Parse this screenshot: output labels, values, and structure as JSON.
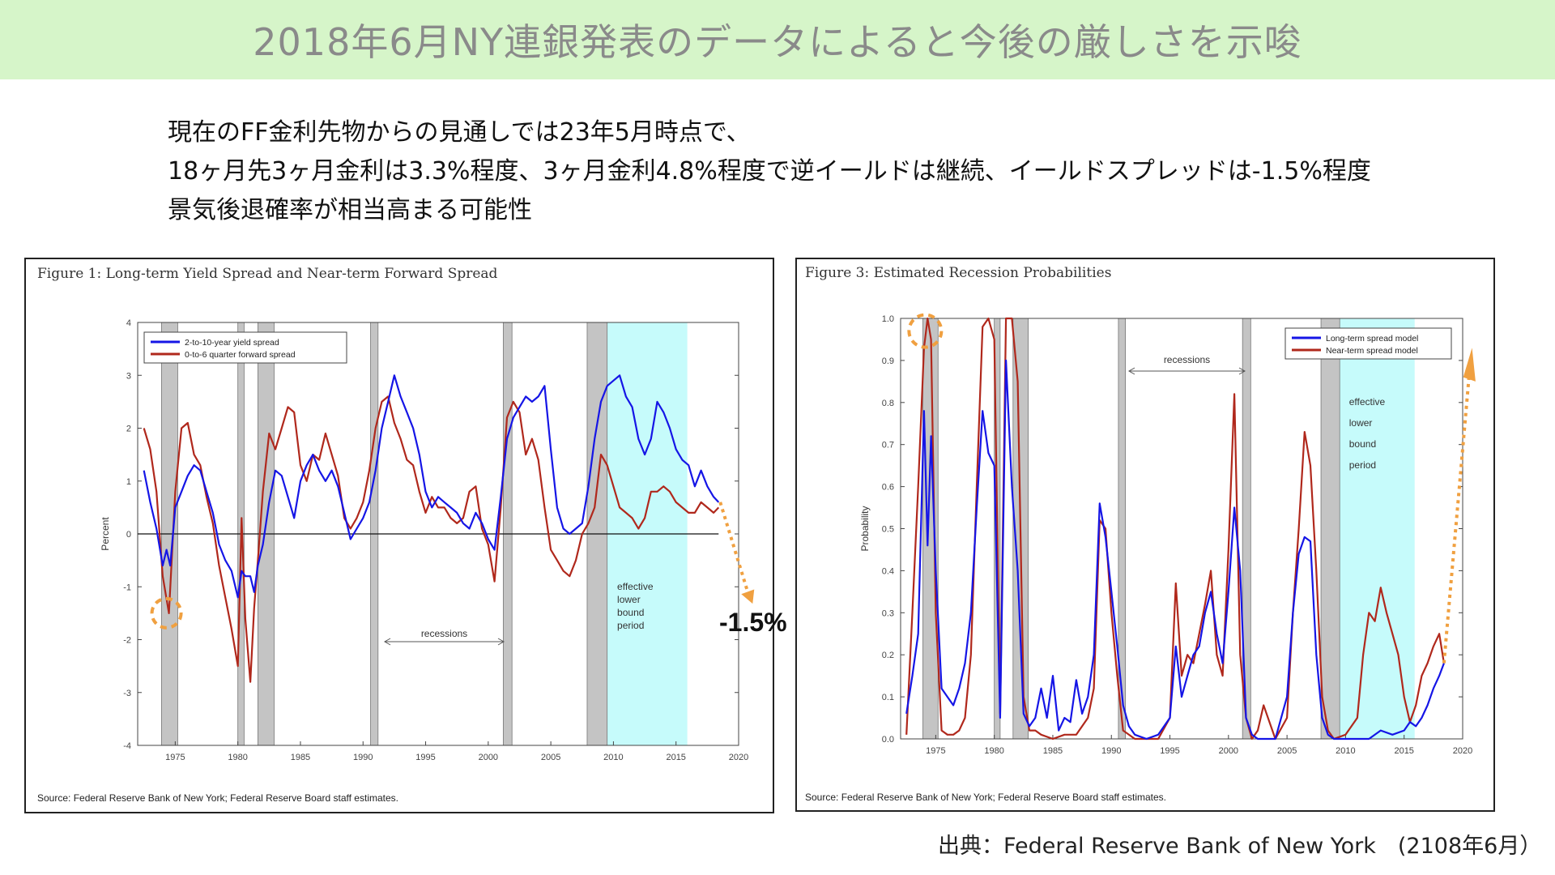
{
  "slide": {
    "title": "2018年6月NY連銀発表のデータによると今後の厳しさを示唆",
    "lines": [
      "現在のFF金利先物からの見通しでは23年5月時点で、",
      "18ヶ月先3ヶ月金利は3.3%程度、3ヶ月金利4.8%程度で逆イールドは継続、イールドスプレッドは-1.5%程度",
      "景気後退確率が相当高まる可能性"
    ],
    "annotation_value": "-1.5%",
    "credit": "出典：Federal Reserve Bank of New York　(2108年6月）"
  },
  "colors": {
    "blue": "#1515e6",
    "red": "#b0281c",
    "recession": "#c4c4c4",
    "elb": "#c6fbfb",
    "arrow": "#f0a040",
    "title_bg": "#d6f5c9"
  },
  "chart_data": [
    {
      "type": "line",
      "title": "Figure 1: Long-term Yield Spread and Near-term Forward Spread",
      "ylabel": "Percent",
      "xlim": [
        1972,
        2020
      ],
      "ylim": [
        -4,
        4
      ],
      "xticks": [
        "1975",
        "1980",
        "1985",
        "1990",
        "1995",
        "2000",
        "2005",
        "2010",
        "2015",
        "2020"
      ],
      "yticks": [
        "4",
        "3",
        "2",
        "1",
        "0",
        "-1",
        "-2",
        "-3",
        "-4"
      ],
      "legend": "top-left",
      "source": "Source: Federal Reserve Bank of New York; Federal Reserve Board staff estimates.",
      "recessions": [
        [
          1973.9,
          1975.2
        ],
        [
          1980.0,
          1980.5
        ],
        [
          1981.6,
          1982.9
        ],
        [
          1990.6,
          1991.2
        ],
        [
          2001.2,
          2001.9
        ],
        [
          2007.9,
          2009.5
        ]
      ],
      "elb_period": [
        2009.0,
        2015.9
      ],
      "elb_label": [
        "effective",
        "lower",
        "bound",
        "period"
      ],
      "recessions_label": "recessions",
      "series": [
        {
          "name": "2-to-10-year yield spread",
          "x": [
            1972.5,
            1973.0,
            1973.5,
            1974.0,
            1974.3,
            1974.6,
            1975.0,
            1975.5,
            1976.0,
            1976.5,
            1977.0,
            1977.5,
            1978.0,
            1978.5,
            1979.0,
            1979.5,
            1980.0,
            1980.3,
            1980.6,
            1981.0,
            1981.3,
            1981.6,
            1982.0,
            1982.5,
            1983.0,
            1983.5,
            1984.0,
            1984.5,
            1985.0,
            1985.5,
            1986.0,
            1986.5,
            1987.0,
            1987.5,
            1988.0,
            1988.5,
            1989.0,
            1989.5,
            1990.0,
            1990.5,
            1991.0,
            1991.5,
            1992.0,
            1992.5,
            1993.0,
            1993.5,
            1994.0,
            1994.5,
            1995.0,
            1995.5,
            1996.0,
            1996.5,
            1997.0,
            1997.5,
            1998.0,
            1998.5,
            1999.0,
            1999.5,
            2000.0,
            2000.5,
            2001.0,
            2001.5,
            2002.0,
            2002.5,
            2003.0,
            2003.5,
            2004.0,
            2004.5,
            2005.0,
            2005.5,
            2006.0,
            2006.5,
            2007.0,
            2007.5,
            2008.0,
            2008.5,
            2009.0,
            2009.5,
            2010.0,
            2010.5,
            2011.0,
            2011.5,
            2012.0,
            2012.5,
            2013.0,
            2013.5,
            2014.0,
            2014.5,
            2015.0,
            2015.5,
            2016.0,
            2016.5,
            2017.0,
            2017.5,
            2018.0,
            2018.4
          ],
          "y": [
            1.2,
            0.6,
            0.1,
            -0.6,
            -0.3,
            -0.6,
            0.5,
            0.8,
            1.1,
            1.3,
            1.2,
            0.8,
            0.4,
            -0.2,
            -0.5,
            -0.7,
            -1.2,
            -0.7,
            -0.8,
            -0.8,
            -1.1,
            -0.6,
            -0.2,
            0.6,
            1.2,
            1.1,
            0.7,
            0.3,
            1.0,
            1.3,
            1.5,
            1.2,
            1.0,
            1.2,
            0.9,
            0.4,
            -0.1,
            0.1,
            0.3,
            0.6,
            1.2,
            2.0,
            2.5,
            3.0,
            2.6,
            2.3,
            2.0,
            1.5,
            0.8,
            0.5,
            0.7,
            0.6,
            0.5,
            0.4,
            0.2,
            0.1,
            0.4,
            0.2,
            -0.1,
            -0.3,
            0.7,
            1.8,
            2.2,
            2.4,
            2.6,
            2.5,
            2.6,
            2.8,
            1.6,
            0.5,
            0.1,
            0.0,
            0.1,
            0.2,
            0.9,
            1.8,
            2.5,
            2.8,
            2.9,
            3.0,
            2.6,
            2.4,
            1.8,
            1.5,
            1.8,
            2.5,
            2.3,
            2.0,
            1.6,
            1.4,
            1.3,
            0.9,
            1.2,
            0.9,
            0.7,
            0.6
          ]
        },
        {
          "name": "0-to-6 quarter forward spread",
          "x": [
            1972.5,
            1973.0,
            1973.5,
            1974.0,
            1974.5,
            1975.0,
            1975.5,
            1976.0,
            1976.5,
            1977.0,
            1977.5,
            1978.0,
            1978.5,
            1979.0,
            1979.5,
            1980.0,
            1980.3,
            1980.6,
            1981.0,
            1981.3,
            1981.6,
            1982.0,
            1982.5,
            1983.0,
            1983.5,
            1984.0,
            1984.5,
            1985.0,
            1985.5,
            1986.0,
            1986.5,
            1987.0,
            1987.5,
            1988.0,
            1988.5,
            1989.0,
            1989.5,
            1990.0,
            1990.5,
            1991.0,
            1991.5,
            1992.0,
            1992.5,
            1993.0,
            1993.5,
            1994.0,
            1994.5,
            1995.0,
            1995.5,
            1996.0,
            1996.5,
            1997.0,
            1997.5,
            1998.0,
            1998.5,
            1999.0,
            1999.5,
            2000.0,
            2000.5,
            2001.0,
            2001.5,
            2002.0,
            2002.5,
            2003.0,
            2003.5,
            2004.0,
            2004.5,
            2005.0,
            2005.5,
            2006.0,
            2006.5,
            2007.0,
            2007.5,
            2008.0,
            2008.5,
            2009.0,
            2009.5,
            2010.0,
            2010.5,
            2011.0,
            2011.5,
            2012.0,
            2012.5,
            2013.0,
            2013.5,
            2014.0,
            2014.5,
            2015.0,
            2015.5,
            2016.0,
            2016.5,
            2017.0,
            2017.5,
            2018.0,
            2018.4
          ],
          "y": [
            2.0,
            1.6,
            0.8,
            -0.8,
            -1.5,
            0.8,
            2.0,
            2.1,
            1.5,
            1.3,
            0.7,
            0.2,
            -0.6,
            -1.2,
            -1.8,
            -2.5,
            0.3,
            -1.6,
            -2.8,
            -1.4,
            -0.5,
            0.8,
            1.9,
            1.6,
            2.0,
            2.4,
            2.3,
            1.3,
            1.0,
            1.5,
            1.4,
            1.9,
            1.5,
            1.1,
            0.3,
            0.1,
            0.3,
            0.6,
            1.2,
            2.0,
            2.5,
            2.6,
            2.1,
            1.8,
            1.4,
            1.3,
            0.8,
            0.4,
            0.7,
            0.5,
            0.5,
            0.3,
            0.2,
            0.3,
            0.8,
            0.9,
            0.1,
            -0.2,
            -0.9,
            0.5,
            2.2,
            2.5,
            2.3,
            1.5,
            1.8,
            1.4,
            0.5,
            -0.3,
            -0.5,
            -0.7,
            -0.8,
            -0.5,
            0.0,
            0.2,
            0.5,
            1.5,
            1.3,
            0.9,
            0.5,
            0.4,
            0.3,
            0.1,
            0.3,
            0.8,
            0.8,
            0.9,
            0.8,
            0.6,
            0.5,
            0.4,
            0.4,
            0.6,
            0.5,
            0.4,
            0.5
          ]
        }
      ]
    },
    {
      "type": "line",
      "title": "Figure 3: Estimated Recession Probabilities",
      "ylabel": "Probability",
      "xlim": [
        1972,
        2020
      ],
      "ylim": [
        0,
        1
      ],
      "xticks": [
        "1975",
        "1980",
        "1985",
        "1990",
        "1995",
        "2000",
        "2005",
        "2010",
        "2015",
        "2020"
      ],
      "yticks": [
        "1.0",
        "0.9",
        "0.8",
        "0.7",
        "0.6",
        "0.5",
        "0.4",
        "0.3",
        "0.2",
        "0.1",
        "0.0"
      ],
      "legend": "top-right",
      "source": "Source: Federal Reserve Bank of New York; Federal Reserve Board staff estimates.",
      "recessions": [
        [
          1973.9,
          1975.2
        ],
        [
          1980.0,
          1980.5
        ],
        [
          1981.6,
          1982.9
        ],
        [
          1990.6,
          1991.2
        ],
        [
          2001.2,
          2001.9
        ],
        [
          2007.9,
          2009.5
        ]
      ],
      "elb_period": [
        2009.0,
        2015.9
      ],
      "elb_label": [
        "effective",
        "lower",
        "bound",
        "period"
      ],
      "recessions_label": "recessions",
      "series": [
        {
          "name": "Long-term spread model",
          "x": [
            1972.5,
            1973.0,
            1973.5,
            1974.0,
            1974.3,
            1974.6,
            1975.0,
            1975.5,
            1976.0,
            1976.5,
            1977.0,
            1977.5,
            1978.0,
            1978.5,
            1979.0,
            1979.5,
            1980.0,
            1980.5,
            1981.0,
            1981.5,
            1982.0,
            1982.5,
            1983.0,
            1983.5,
            1984.0,
            1984.5,
            1985.0,
            1985.5,
            1986.0,
            1986.5,
            1987.0,
            1987.5,
            1988.0,
            1988.5,
            1989.0,
            1989.5,
            1990.0,
            1990.5,
            1991.0,
            1991.5,
            1992.0,
            1993.0,
            1994.0,
            1995.0,
            1995.5,
            1996.0,
            1996.5,
            1997.0,
            1997.5,
            1998.0,
            1998.5,
            1999.0,
            1999.5,
            2000.0,
            2000.5,
            2001.0,
            2001.5,
            2002.0,
            2002.5,
            2003.0,
            2004.0,
            2005.0,
            2005.5,
            2006.0,
            2006.5,
            2007.0,
            2007.5,
            2008.0,
            2008.5,
            2009.0,
            2010.0,
            2011.0,
            2012.0,
            2013.0,
            2014.0,
            2015.0,
            2015.5,
            2016.0,
            2016.5,
            2017.0,
            2017.5,
            2018.0,
            2018.4
          ],
          "y": [
            0.06,
            0.15,
            0.25,
            0.78,
            0.46,
            0.72,
            0.4,
            0.12,
            0.1,
            0.08,
            0.12,
            0.18,
            0.3,
            0.55,
            0.78,
            0.68,
            0.65,
            0.05,
            0.9,
            0.6,
            0.4,
            0.06,
            0.03,
            0.05,
            0.12,
            0.05,
            0.15,
            0.02,
            0.05,
            0.04,
            0.14,
            0.06,
            0.1,
            0.2,
            0.56,
            0.48,
            0.35,
            0.22,
            0.08,
            0.03,
            0.01,
            0.0,
            0.01,
            0.05,
            0.22,
            0.1,
            0.15,
            0.2,
            0.22,
            0.3,
            0.35,
            0.25,
            0.18,
            0.35,
            0.55,
            0.4,
            0.05,
            0.01,
            0.0,
            0.0,
            0.0,
            0.1,
            0.3,
            0.44,
            0.48,
            0.47,
            0.2,
            0.05,
            0.01,
            0.0,
            0.0,
            0.0,
            0.0,
            0.02,
            0.01,
            0.02,
            0.04,
            0.03,
            0.05,
            0.08,
            0.12,
            0.15,
            0.18
          ]
        },
        {
          "name": "Near-term spread model",
          "x": [
            1972.5,
            1973.0,
            1973.5,
            1974.0,
            1974.3,
            1974.6,
            1975.0,
            1975.5,
            1976.0,
            1976.5,
            1977.0,
            1977.5,
            1978.0,
            1978.5,
            1979.0,
            1979.5,
            1980.0,
            1980.5,
            1981.0,
            1981.5,
            1982.0,
            1982.5,
            1983.0,
            1983.5,
            1984.0,
            1985.0,
            1986.0,
            1987.0,
            1988.0,
            1988.5,
            1989.0,
            1989.5,
            1990.0,
            1990.5,
            1991.0,
            1992.0,
            1993.0,
            1994.0,
            1995.0,
            1995.5,
            1996.0,
            1996.5,
            1997.0,
            1997.5,
            1998.0,
            1998.5,
            1999.0,
            1999.5,
            2000.0,
            2000.5,
            2001.0,
            2001.5,
            2002.0,
            2002.5,
            2003.0,
            2004.0,
            2005.0,
            2005.5,
            2006.0,
            2006.5,
            2007.0,
            2007.5,
            2008.0,
            2008.5,
            2009.0,
            2010.0,
            2011.0,
            2011.5,
            2012.0,
            2012.5,
            2013.0,
            2013.5,
            2014.0,
            2014.5,
            2015.0,
            2015.5,
            2016.0,
            2016.5,
            2017.0,
            2017.5,
            2018.0,
            2018.4
          ],
          "y": [
            0.01,
            0.3,
            0.6,
            0.93,
            1.0,
            0.95,
            0.3,
            0.02,
            0.01,
            0.01,
            0.02,
            0.05,
            0.2,
            0.6,
            0.98,
            1.0,
            0.95,
            0.06,
            1.0,
            1.0,
            0.85,
            0.1,
            0.02,
            0.02,
            0.01,
            0.0,
            0.01,
            0.01,
            0.05,
            0.12,
            0.52,
            0.5,
            0.3,
            0.15,
            0.02,
            0.0,
            0.0,
            0.0,
            0.05,
            0.37,
            0.15,
            0.2,
            0.18,
            0.25,
            0.32,
            0.4,
            0.2,
            0.15,
            0.45,
            0.82,
            0.2,
            0.05,
            0.0,
            0.02,
            0.08,
            0.0,
            0.05,
            0.3,
            0.5,
            0.73,
            0.65,
            0.4,
            0.1,
            0.02,
            0.0,
            0.01,
            0.05,
            0.2,
            0.3,
            0.28,
            0.36,
            0.3,
            0.25,
            0.2,
            0.1,
            0.04,
            0.08,
            0.15,
            0.18,
            0.22,
            0.25,
            0.18
          ]
        }
      ]
    }
  ]
}
